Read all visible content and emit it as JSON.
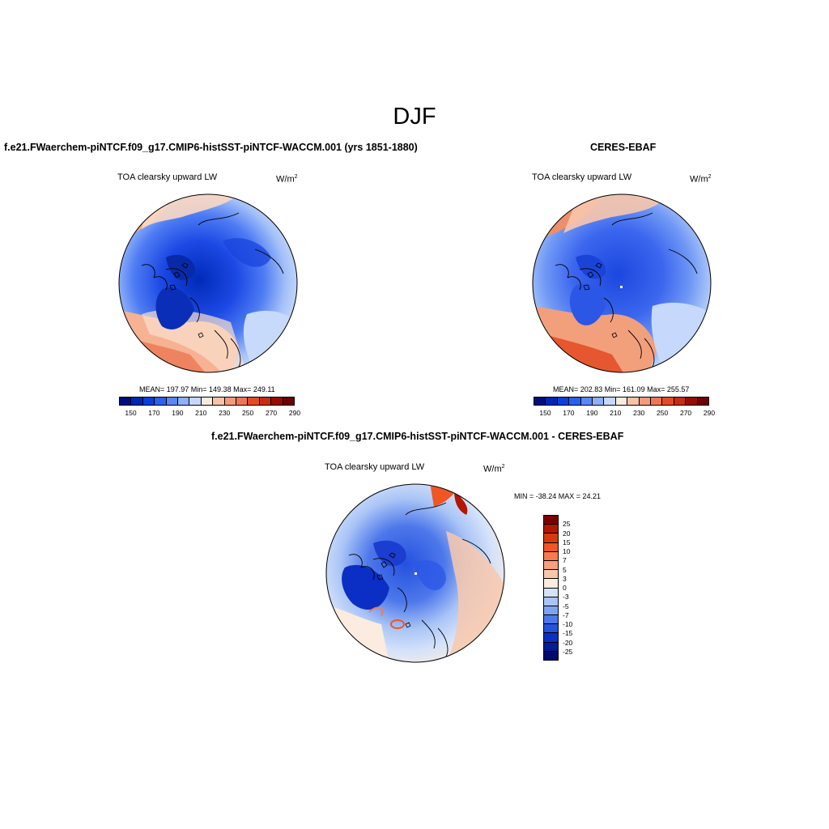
{
  "main_title": "DJF",
  "panels": [
    {
      "title": "f.e21.FWaerchem-piNTCF.f09_g17.CMIP6-histSST-piNTCF-WACCM.001 (yrs 1851-1880)",
      "variable": "TOA clearsky upward LW",
      "units": "W/m",
      "units_sup": "2",
      "stats": "MEAN= 197.97  Min= 149.38  Max= 249.11"
    },
    {
      "title": "CERES-EBAF",
      "variable": "TOA clearsky upward LW",
      "units": "W/m",
      "units_sup": "2",
      "stats": "MEAN= 202.83  Min= 161.09  Max= 255.57"
    },
    {
      "title": "f.e21.FWaerchem-piNTCF.f09_g17.CMIP6-histSST-piNTCF-WACCM.001 - CERES-EBAF",
      "variable": "TOA clearsky upward LW",
      "units": "W/m",
      "units_sup": "2",
      "stats": "MIN = -38.24 MAX =  24.21"
    }
  ],
  "colorbar_abs": {
    "labels": [
      "150",
      "170",
      "190",
      "210",
      "230",
      "250",
      "270",
      "290"
    ],
    "colors": [
      "#000d7e",
      "#0026b6",
      "#0b3edb",
      "#2b5fee",
      "#5a86f6",
      "#8fb0f8",
      "#c5d7fb",
      "#fbebdc",
      "#f6c2a8",
      "#f29a7d",
      "#ee7656",
      "#e54a28",
      "#c92b10",
      "#980b03",
      "#6d0000"
    ]
  },
  "colorbar_diff": {
    "labels": [
      "25",
      "20",
      "15",
      "10",
      "7",
      "5",
      "3",
      "0",
      "-3",
      "-5",
      "-7",
      "-10",
      "-15",
      "-20",
      "-25"
    ],
    "colors": [
      "#7a0000",
      "#b41600",
      "#d63a0c",
      "#ef5624",
      "#f57a4f",
      "#f6a07d",
      "#f8c8ad",
      "#fbecdf",
      "#d4e2fa",
      "#a9c4f6",
      "#7ea3f2",
      "#4d78ea",
      "#2551e0",
      "#0b2ec4",
      "#001d95",
      "#000a6a"
    ]
  }
}
